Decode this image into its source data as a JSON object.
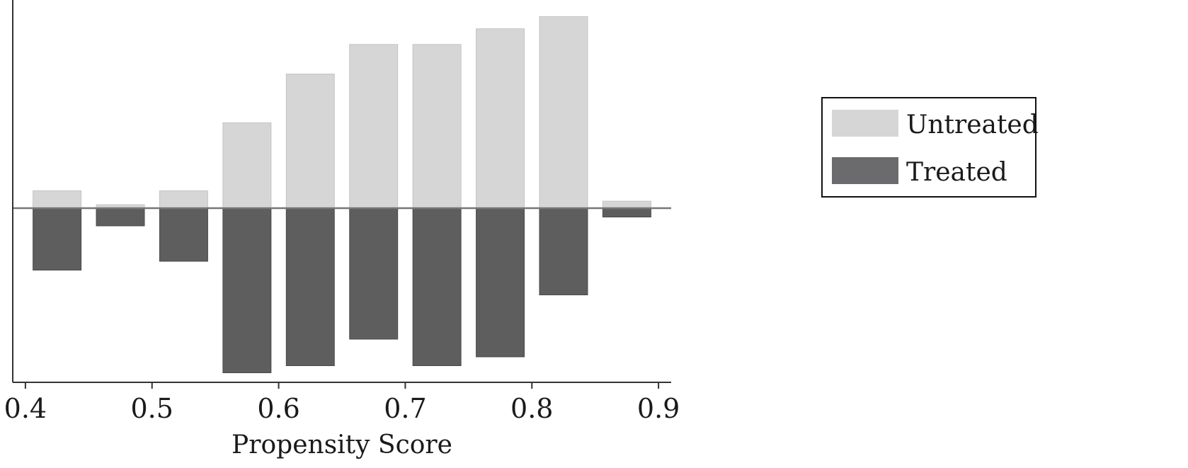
{
  "chart_data": {
    "type": "bar",
    "title": "",
    "xlabel": "Propensity Score",
    "ylabel": "",
    "xlim": [
      0.39,
      0.91
    ],
    "x_ticks": [
      "0.4",
      "0.5",
      "0.6",
      "0.7",
      "0.8",
      "0.9"
    ],
    "x_tick_values": [
      0.4,
      0.5,
      0.6,
      0.7,
      0.8,
      0.9
    ],
    "bin_width": 0.05,
    "bin_starts": [
      0.4,
      0.45,
      0.5,
      0.55,
      0.6,
      0.65,
      0.7,
      0.75,
      0.8,
      0.85
    ],
    "ylim": [
      -1.0,
      1.1
    ],
    "y_axis_labeled": false,
    "layout": "mirrored histogram (untreated above baseline, treated below)",
    "series": [
      {
        "name": "Untreated",
        "color": "#d6d6d6",
        "direction": "up",
        "values": [
          0.1,
          0.02,
          0.1,
          0.49,
          0.77,
          0.94,
          0.94,
          1.03,
          1.1,
          0.04
        ]
      },
      {
        "name": "Treated",
        "color": "#5e5e5e",
        "direction": "down",
        "values": [
          0.35,
          0.1,
          0.3,
          0.93,
          0.89,
          0.74,
          0.89,
          0.84,
          0.49,
          0.05
        ]
      }
    ],
    "legend": {
      "placement": "right",
      "entries": [
        {
          "label": "Untreated",
          "color": "#d6d6d6"
        },
        {
          "label": "Treated",
          "color": "#6b6b6e"
        }
      ]
    },
    "grid": false,
    "baseline_color": "#777777",
    "axis_color": "#333333"
  }
}
